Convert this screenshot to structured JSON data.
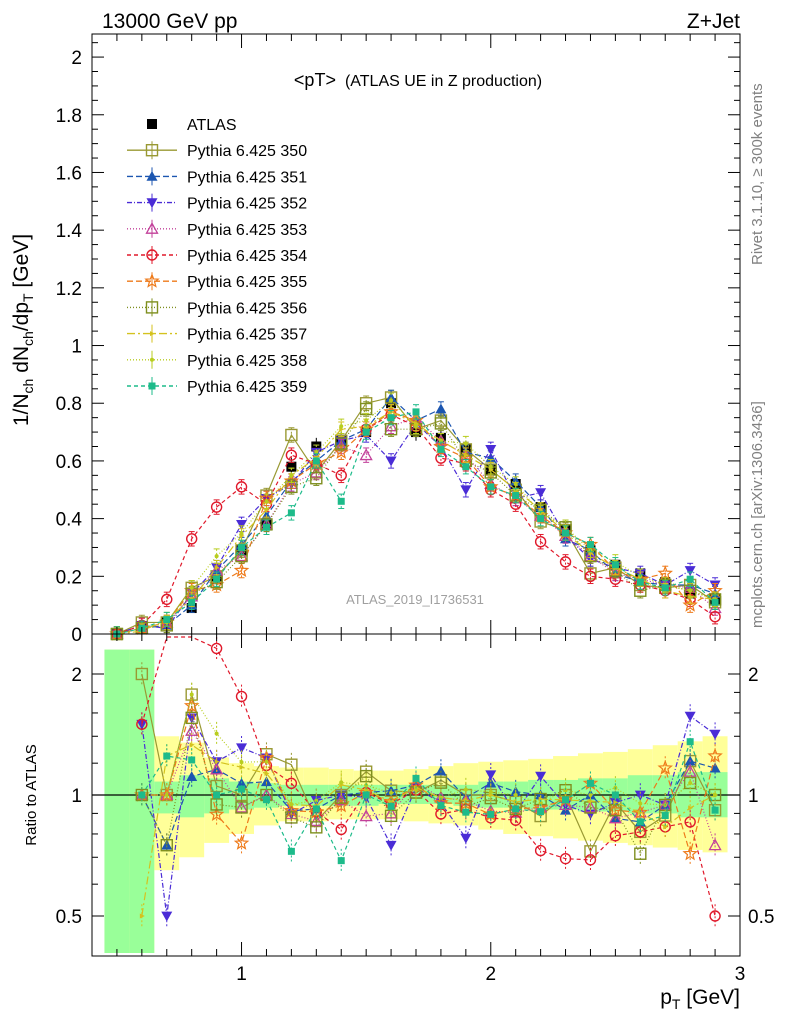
{
  "header": {
    "left": "13000 GeV pp",
    "right": "Z+Jet"
  },
  "side_labels": {
    "rivet": "Rivet 3.1.10, ≥ 300k events",
    "mcplots": "mcplots.cern.ch [arXiv:1306.3436]"
  },
  "watermark": "ATLAS_2019_I1736531",
  "chart_data": [
    {
      "type": "scatter",
      "panel": "main",
      "title": "<pT> (ATLAS UE in Z production)",
      "title_main": "<pT>",
      "title_sub": "(ATLAS UE in Z production)",
      "ylabel": "1/N_ch dN_ch/dp_T [GeV]",
      "xlim": [
        0.4,
        3.0
      ],
      "ylim": [
        0,
        2.08
      ],
      "yticks": [
        0,
        0.2,
        0.4,
        0.6,
        0.8,
        1,
        1.2,
        1.4,
        1.6,
        1.8,
        2
      ],
      "ytick_labels": [
        "0",
        "0.2",
        "0.4",
        "0.6",
        "0.8",
        "1",
        "1.2",
        "1.4",
        "1.6",
        "1.8",
        "2"
      ],
      "legend_position": "top-left",
      "x": [
        0.5,
        0.6,
        0.7,
        0.8,
        0.9,
        1.0,
        1.1,
        1.2,
        1.3,
        1.4,
        1.5,
        1.6,
        1.7,
        1.8,
        1.9,
        2.0,
        2.1,
        2.2,
        2.3,
        2.4,
        2.5,
        2.6,
        2.7,
        2.8,
        2.9
      ],
      "series": [
        {
          "name": "ATLAS",
          "color": "#000000",
          "marker": "filled-square",
          "dash": "none",
          "values": [
            0.0,
            0.02,
            0.04,
            0.09,
            0.19,
            0.29,
            0.38,
            0.58,
            0.65,
            0.67,
            0.7,
            0.8,
            0.7,
            0.68,
            0.64,
            0.57,
            0.52,
            0.44,
            0.36,
            0.29,
            0.24,
            0.21,
            0.18,
            0.14,
            0.12
          ],
          "errors": [
            0.01,
            0.01,
            0.01,
            0.015,
            0.02,
            0.02,
            0.02,
            0.03,
            0.03,
            0.03,
            0.03,
            0.03,
            0.03,
            0.03,
            0.03,
            0.03,
            0.03,
            0.03,
            0.02,
            0.02,
            0.02,
            0.02,
            0.02,
            0.02,
            0.02
          ]
        },
        {
          "name": "Pythia 6.425 350",
          "color": "#999933",
          "marker": "open-square",
          "dash": "none",
          "values": [
            0.0,
            0.04,
            0.04,
            0.16,
            0.2,
            0.29,
            0.48,
            0.69,
            0.56,
            0.67,
            0.8,
            0.82,
            0.71,
            0.74,
            0.64,
            0.57,
            0.5,
            0.39,
            0.36,
            0.21,
            0.23,
            0.17,
            0.16,
            0.17,
            0.11
          ]
        },
        {
          "name": "Pythia 6.425 351",
          "color": "#1c56b0",
          "marker": "triangle-up",
          "dash": "6,3",
          "values": [
            0.0,
            0.02,
            0.03,
            0.1,
            0.22,
            0.31,
            0.41,
            0.53,
            0.6,
            0.67,
            0.71,
            0.82,
            0.74,
            0.78,
            0.63,
            0.61,
            0.53,
            0.44,
            0.33,
            0.29,
            0.21,
            0.18,
            0.17,
            0.17,
            0.14
          ]
        },
        {
          "name": "Pythia 6.425 352",
          "color": "#4a2cd6",
          "marker": "triangle-down",
          "dash": "5,2,1,2",
          "values": [
            0.0,
            0.03,
            0.02,
            0.14,
            0.23,
            0.38,
            0.47,
            0.52,
            0.63,
            0.67,
            0.69,
            0.6,
            0.73,
            0.65,
            0.5,
            0.64,
            0.47,
            0.49,
            0.34,
            0.26,
            0.23,
            0.21,
            0.17,
            0.22,
            0.17
          ]
        },
        {
          "name": "Pythia 6.425 353",
          "color": "#c2409a",
          "marker": "open-triangle-up",
          "dash": "1,2",
          "values": [
            0.0,
            0.02,
            0.04,
            0.13,
            0.22,
            0.27,
            0.38,
            0.52,
            0.56,
            0.65,
            0.62,
            0.72,
            0.75,
            0.67,
            0.62,
            0.52,
            0.47,
            0.41,
            0.34,
            0.27,
            0.21,
            0.19,
            0.17,
            0.16,
            0.09
          ]
        },
        {
          "name": "Pythia 6.425 354",
          "color": "#e0192b",
          "marker": "open-circle",
          "dash": "4,3",
          "values": [
            0.0,
            0.03,
            0.12,
            0.33,
            0.44,
            0.51,
            0.45,
            0.62,
            0.59,
            0.55,
            0.71,
            0.76,
            0.72,
            0.61,
            0.59,
            0.5,
            0.45,
            0.32,
            0.25,
            0.2,
            0.19,
            0.17,
            0.15,
            0.12,
            0.06
          ]
        },
        {
          "name": "Pythia 6.425 355",
          "color": "#ee7a1a",
          "marker": "open-star",
          "dash": "6,3",
          "values": [
            0.0,
            0.02,
            0.04,
            0.15,
            0.17,
            0.22,
            0.47,
            0.53,
            0.59,
            0.63,
            0.71,
            0.77,
            0.74,
            0.65,
            0.61,
            0.51,
            0.48,
            0.41,
            0.35,
            0.31,
            0.22,
            0.19,
            0.21,
            0.1,
            0.15
          ]
        },
        {
          "name": "Pythia 6.425 356",
          "color": "#7f8f1f",
          "marker": "open-square",
          "dash": "1,2",
          "values": [
            0.0,
            0.02,
            0.03,
            0.14,
            0.18,
            0.27,
            0.38,
            0.51,
            0.54,
            0.66,
            0.78,
            0.71,
            0.71,
            0.73,
            0.6,
            0.56,
            0.48,
            0.43,
            0.37,
            0.27,
            0.22,
            0.15,
            0.17,
            0.15,
            0.12
          ]
        },
        {
          "name": "Pythia 6.425 357",
          "color": "#d4c21e",
          "marker": "small-triangle-right",
          "dash": "8,3,2,3",
          "values": [
            0.0,
            0.01,
            0.05,
            0.12,
            0.23,
            0.34,
            0.43,
            0.55,
            0.61,
            0.71,
            0.72,
            0.77,
            0.73,
            0.67,
            0.62,
            0.57,
            0.5,
            0.43,
            0.35,
            0.28,
            0.23,
            0.19,
            0.15,
            0.13,
            0.12
          ]
        },
        {
          "name": "Pythia 6.425 358",
          "color": "#b8cd1e",
          "marker": "small-circle",
          "dash": "1,2",
          "values": [
            0.0,
            0.02,
            0.04,
            0.16,
            0.27,
            0.35,
            0.46,
            0.55,
            0.63,
            0.72,
            0.74,
            0.81,
            0.72,
            0.67,
            0.66,
            0.58,
            0.52,
            0.42,
            0.37,
            0.29,
            0.25,
            0.2,
            0.17,
            0.15,
            0.12
          ]
        },
        {
          "name": "Pythia 6.425 359",
          "color": "#1dbb8a",
          "marker": "filled-square-small",
          "dash": "4,3",
          "values": [
            0.0,
            0.02,
            0.05,
            0.11,
            0.19,
            0.3,
            0.37,
            0.42,
            0.6,
            0.46,
            0.7,
            0.75,
            0.77,
            0.64,
            0.58,
            0.51,
            0.48,
            0.4,
            0.35,
            0.31,
            0.24,
            0.18,
            0.16,
            0.19,
            0.11
          ]
        }
      ]
    },
    {
      "type": "scatter",
      "panel": "ratio",
      "ylabel": "Ratio to ATLAS",
      "xlabel": "p_T [GeV]",
      "xlim": [
        0.4,
        3.0
      ],
      "xticks": [
        1,
        2,
        3
      ],
      "xtick_labels": [
        "1",
        "2",
        "3"
      ],
      "ylim": [
        0.4,
        2.3
      ],
      "ylog": true,
      "yticks": [
        0.5,
        1,
        2
      ],
      "ytick_labels": [
        "0.5",
        "1",
        "2"
      ],
      "reference_line": 1,
      "band_colors": {
        "stat": "#99ff99",
        "total": "#ffff99"
      },
      "band_x": [
        0.45,
        0.55,
        0.65,
        0.75,
        0.85,
        0.95,
        1.05,
        1.15,
        1.25,
        1.35,
        1.45,
        1.55,
        1.65,
        1.75,
        1.85,
        1.95,
        2.05,
        2.15,
        2.25,
        2.35,
        2.45,
        2.55,
        2.65,
        2.75,
        2.85,
        2.95
      ],
      "stat_band": [
        [
          0.4,
          2.3
        ],
        [
          0.4,
          2.3
        ],
        [
          0.9,
          1.08
        ],
        [
          0.88,
          1.12
        ],
        [
          0.9,
          1.1
        ],
        [
          0.92,
          1.08
        ],
        [
          0.93,
          1.07
        ],
        [
          0.94,
          1.06
        ],
        [
          0.94,
          1.06
        ],
        [
          0.94,
          1.06
        ],
        [
          0.94,
          1.06
        ],
        [
          0.95,
          1.06
        ],
        [
          0.95,
          1.06
        ],
        [
          0.95,
          1.06
        ],
        [
          0.94,
          1.06
        ],
        [
          0.93,
          1.08
        ],
        [
          0.93,
          1.08
        ],
        [
          0.92,
          1.09
        ],
        [
          0.92,
          1.09
        ],
        [
          0.91,
          1.1
        ],
        [
          0.91,
          1.1
        ],
        [
          0.9,
          1.12
        ],
        [
          0.9,
          1.12
        ],
        [
          0.88,
          1.14
        ],
        [
          0.88,
          1.14
        ]
      ],
      "total_band": [
        [
          0.4,
          2.3
        ],
        [
          0.4,
          2.3
        ],
        [
          0.65,
          1.4
        ],
        [
          0.7,
          1.35
        ],
        [
          0.76,
          1.24
        ],
        [
          0.8,
          1.2
        ],
        [
          0.84,
          1.18
        ],
        [
          0.86,
          1.17
        ],
        [
          0.86,
          1.17
        ],
        [
          0.87,
          1.16
        ],
        [
          0.87,
          1.15
        ],
        [
          0.87,
          1.15
        ],
        [
          0.86,
          1.16
        ],
        [
          0.85,
          1.18
        ],
        [
          0.84,
          1.2
        ],
        [
          0.82,
          1.21
        ],
        [
          0.8,
          1.22
        ],
        [
          0.79,
          1.23
        ],
        [
          0.78,
          1.25
        ],
        [
          0.77,
          1.27
        ],
        [
          0.76,
          1.28
        ],
        [
          0.75,
          1.3
        ],
        [
          0.74,
          1.33
        ],
        [
          0.73,
          1.36
        ],
        [
          0.72,
          1.4
        ]
      ]
    }
  ]
}
